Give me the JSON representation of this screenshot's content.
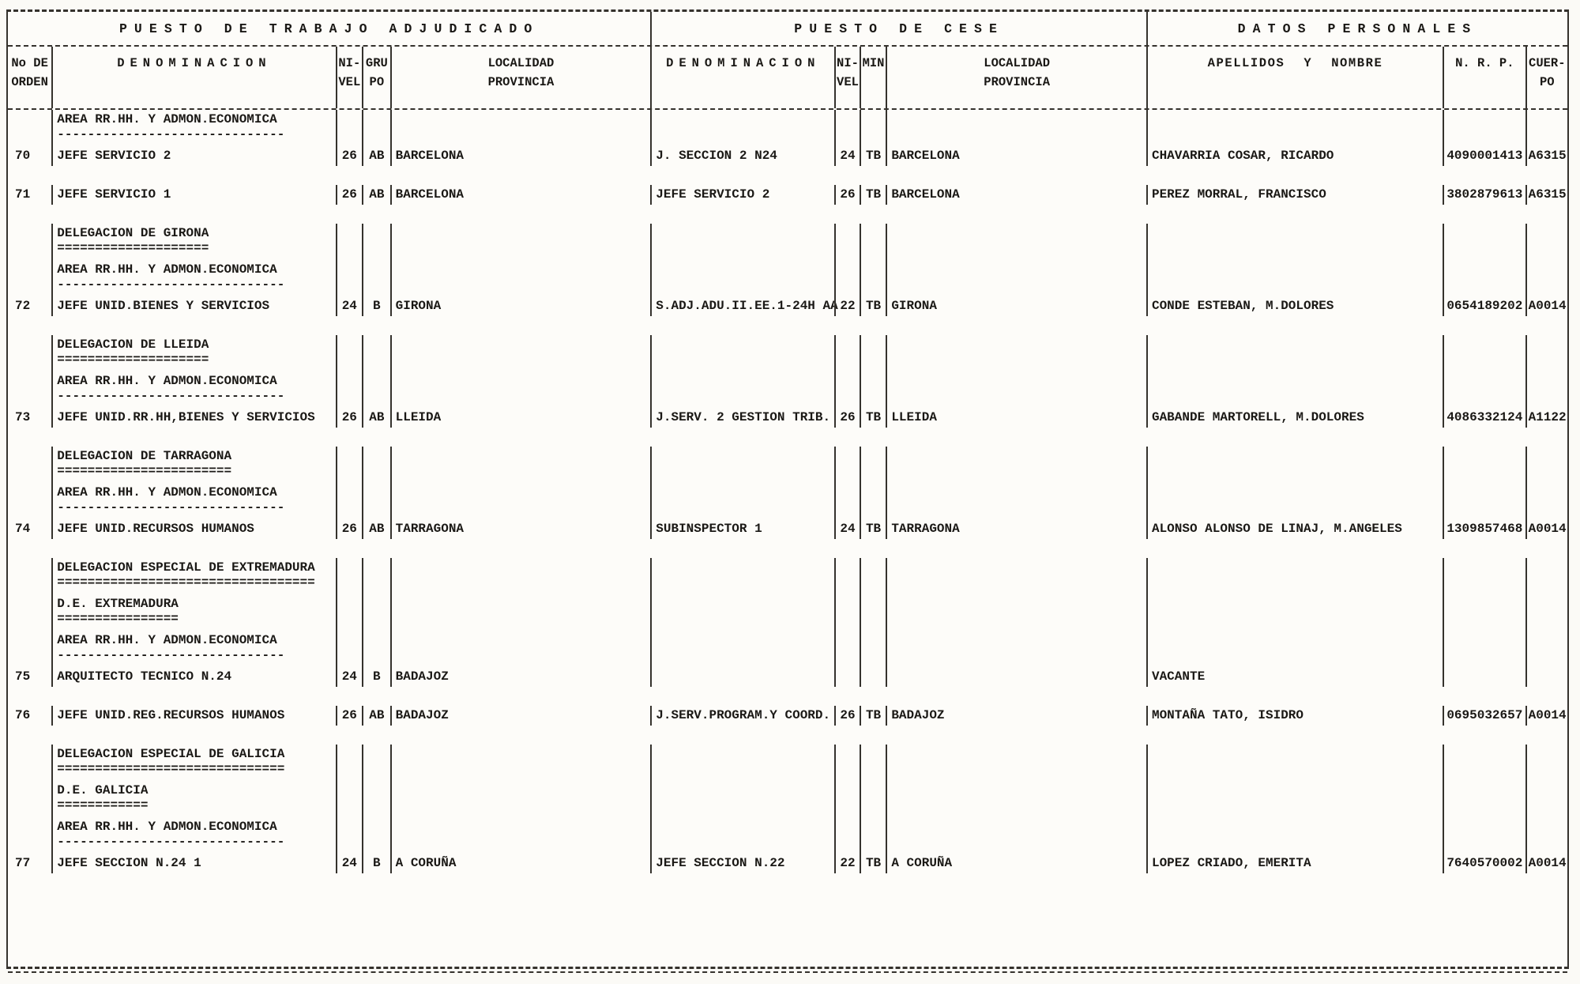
{
  "document": {
    "sections": {
      "adjudicado": "PUESTO DE TRABAJO ADJUDICADO",
      "cese": "PUESTO DE CESE",
      "datos": "DATOS PERSONALES"
    },
    "columns": [
      {
        "id": "orden",
        "line1": "No DE",
        "line2": "ORDEN"
      },
      {
        "id": "denominacion",
        "line1": "DENOMINACION",
        "line2": ""
      },
      {
        "id": "nivel",
        "line1": "NI-",
        "line2": "VEL"
      },
      {
        "id": "grupo",
        "line1": "GRU",
        "line2": "PO"
      },
      {
        "id": "localidad",
        "line1": "LOCALIDAD",
        "line2": "PROVINCIA"
      },
      {
        "id": "cese-denominacion",
        "line1": "DENOMINACION",
        "line2": ""
      },
      {
        "id": "cese-nivel",
        "line1": "NI-",
        "line2": "VEL"
      },
      {
        "id": "cese-min",
        "line1": "MIN",
        "line2": ""
      },
      {
        "id": "cese-localidad",
        "line1": "LOCALIDAD",
        "line2": "PROVINCIA"
      },
      {
        "id": "apellidos-nombre",
        "line1": "APELLIDOS Y NOMBRE",
        "line2": ""
      },
      {
        "id": "nrp",
        "line1": "N. R. P.",
        "line2": ""
      },
      {
        "id": "cuerpo",
        "line1": "CUER-",
        "line2": "PO"
      }
    ],
    "rows": [
      {
        "type": "section",
        "label": "AREA RR.HH. Y ADMON.ECONOMICA",
        "underline": "------------------------------"
      },
      {
        "type": "entry",
        "orden": "70",
        "denom": "JEFE SERVICIO 2",
        "nivel": "26",
        "grupo": "AB",
        "localidad": "BARCELONA",
        "cese_denom": "J. SECCION 2 N24",
        "cese_nivel": "24",
        "cese_min": "TB",
        "cese_localidad": "BARCELONA",
        "nombre": "CHAVARRIA COSAR, RICARDO",
        "nrp": "4090001413",
        "cuerpo": "A6315"
      },
      {
        "type": "entry",
        "orden": "71",
        "denom": "JEFE SERVICIO 1",
        "nivel": "26",
        "grupo": "AB",
        "localidad": "BARCELONA",
        "cese_denom": "JEFE SERVICIO 2",
        "cese_nivel": "26",
        "cese_min": "TB",
        "cese_localidad": "BARCELONA",
        "nombre": "PEREZ MORRAL, FRANCISCO",
        "nrp": "3802879613",
        "cuerpo": "A6315"
      },
      {
        "type": "section",
        "label": "DELEGACION DE GIRONA",
        "underline": "===================="
      },
      {
        "type": "section",
        "label": "AREA RR.HH. Y ADMON.ECONOMICA",
        "underline": "------------------------------"
      },
      {
        "type": "entry",
        "orden": "72",
        "denom": "JEFE UNID.BIENES Y SERVICIOS",
        "nivel": "24",
        "grupo": "B",
        "localidad": "GIRONA",
        "cese_denom": "S.ADJ.ADU.II.EE.1-24H AA",
        "cese_nivel": "22",
        "cese_min": "TB",
        "cese_localidad": "GIRONA",
        "nombre": "CONDE ESTEBAN, M.DOLORES",
        "nrp": "0654189202",
        "cuerpo": "A0014"
      },
      {
        "type": "section",
        "label": "DELEGACION DE LLEIDA",
        "underline": "===================="
      },
      {
        "type": "section",
        "label": "AREA RR.HH. Y ADMON.ECONOMICA",
        "underline": "------------------------------"
      },
      {
        "type": "entry",
        "orden": "73",
        "denom": "JEFE UNID.RR.HH,BIENES Y SERVICIOS",
        "nivel": "26",
        "grupo": "AB",
        "localidad": "LLEIDA",
        "cese_denom": "J.SERV. 2 GESTION TRIB.",
        "cese_nivel": "26",
        "cese_min": "TB",
        "cese_localidad": "LLEIDA",
        "nombre": "GABANDE MARTORELL, M.DOLORES",
        "nrp": "4086332124",
        "cuerpo": "A1122"
      },
      {
        "type": "section",
        "label": "DELEGACION DE TARRAGONA",
        "underline": "======================="
      },
      {
        "type": "section",
        "label": "AREA RR.HH. Y ADMON.ECONOMICA",
        "underline": "------------------------------"
      },
      {
        "type": "entry",
        "orden": "74",
        "denom": "JEFE UNID.RECURSOS HUMANOS",
        "nivel": "26",
        "grupo": "AB",
        "localidad": "TARRAGONA",
        "cese_denom": "SUBINSPECTOR 1",
        "cese_nivel": "24",
        "cese_min": "TB",
        "cese_localidad": "TARRAGONA",
        "nombre": "ALONSO ALONSO DE LINAJ, M.ANGELES",
        "nrp": "1309857468",
        "cuerpo": "A0014"
      },
      {
        "type": "section",
        "label": "DELEGACION ESPECIAL DE EXTREMADURA",
        "underline": "=================================="
      },
      {
        "type": "section",
        "label": "D.E. EXTREMADURA",
        "underline": "================"
      },
      {
        "type": "section",
        "label": "AREA RR.HH. Y ADMON.ECONOMICA",
        "underline": "------------------------------"
      },
      {
        "type": "entry",
        "orden": "75",
        "denom": "ARQUITECTO TECNICO N.24",
        "nivel": "24",
        "grupo": "B",
        "localidad": "BADAJOZ",
        "cese_denom": "",
        "cese_nivel": "",
        "cese_min": "",
        "cese_localidad": "",
        "nombre": "VACANTE",
        "nrp": "",
        "cuerpo": ""
      },
      {
        "type": "entry",
        "orden": "76",
        "denom": "JEFE UNID.REG.RECURSOS HUMANOS",
        "nivel": "26",
        "grupo": "AB",
        "localidad": "BADAJOZ",
        "cese_denom": "J.SERV.PROGRAM.Y COORD.",
        "cese_nivel": "26",
        "cese_min": "TB",
        "cese_localidad": "BADAJOZ",
        "nombre": "MONTAÑA TATO, ISIDRO",
        "nrp": "0695032657",
        "cuerpo": "A0014"
      },
      {
        "type": "section",
        "label": "DELEGACION ESPECIAL DE GALICIA",
        "underline": "=============================="
      },
      {
        "type": "section",
        "label": "D.E. GALICIA",
        "underline": "============"
      },
      {
        "type": "section",
        "label": "AREA RR.HH. Y ADMON.ECONOMICA",
        "underline": "------------------------------"
      },
      {
        "type": "entry",
        "orden": "77",
        "denom": "JEFE SECCION N.24 1",
        "nivel": "24",
        "grupo": "B",
        "localidad": "A CORUÑA",
        "cese_denom": "JEFE SECCION N.22",
        "cese_nivel": "22",
        "cese_min": "TB",
        "cese_localidad": "A CORUÑA",
        "nombre": "LOPEZ CRIADO, EMERITA",
        "nrp": "7640570002",
        "cuerpo": "A0014"
      }
    ]
  }
}
